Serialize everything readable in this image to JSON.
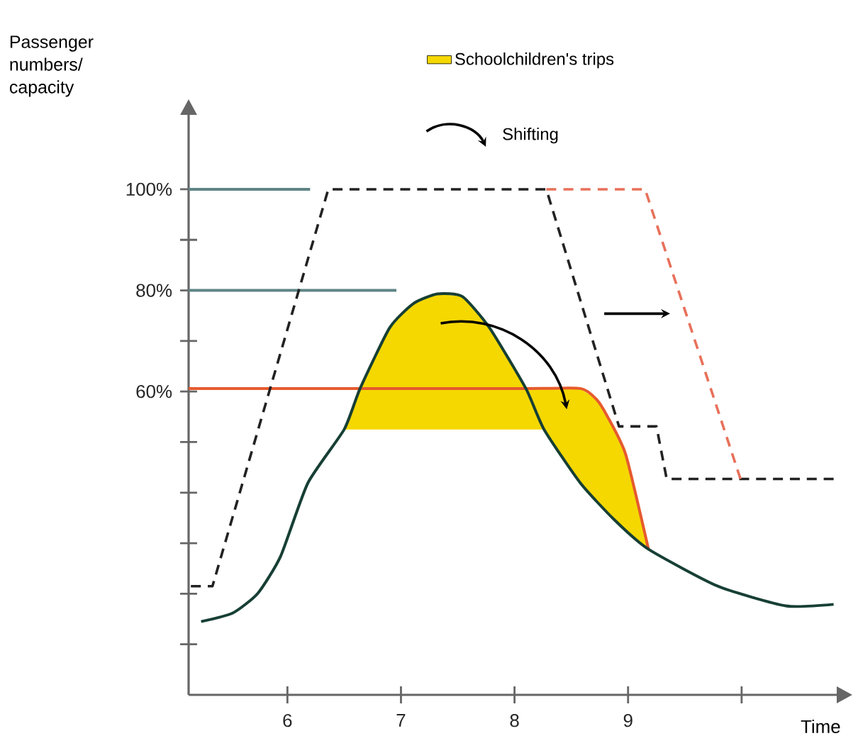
{
  "chart_data": {
    "type": "line",
    "xlabel": "Time",
    "ylabel": "Passenger numbers/ capacity",
    "xlim": [
      5.13,
      10.85
    ],
    "ylim": [
      0,
      115
    ],
    "xticks": [
      6,
      7,
      8,
      9,
      {
        "value": 10,
        "label": null
      }
    ],
    "yticks": [
      {
        "value": 10,
        "label": null
      },
      {
        "value": 20,
        "label": null
      },
      {
        "value": 30,
        "label": null
      },
      {
        "value": 40,
        "label": null
      },
      {
        "value": 50,
        "label": null
      },
      {
        "value": 60,
        "label": "60%"
      },
      {
        "value": 70,
        "label": null
      },
      {
        "value": 80,
        "label": "80%"
      },
      {
        "value": 90,
        "label": null
      },
      {
        "value": 100,
        "label": "100%"
      }
    ],
    "grid": false,
    "legend": "top right",
    "annotations": [
      "Shifting"
    ],
    "series": [
      {
        "type": "area",
        "name": "Schoolchildren's trips",
        "color": "#f5d800",
        "x": [
          6.5,
          6.64,
          6.9,
          7.11,
          7.32,
          7.54,
          7.78,
          8.1,
          8.58,
          8.72,
          8.82,
          8.98,
          9.18,
          8.88,
          8.58,
          8.26,
          6.5
        ],
        "values": [
          52.5,
          60.6,
          72.6,
          77.4,
          79.3,
          78.8,
          72.6,
          60.6,
          60.6,
          58.5,
          55,
          47.5,
          28.8,
          34.6,
          41.9,
          52.5,
          52.5
        ]
      },
      {
        "color": "#5f8585",
        "x": [
          5.13,
          6.2
        ],
        "values": [
          100,
          100
        ]
      },
      {
        "color": "#5f8585",
        "x": [
          5.13,
          6.96
        ],
        "values": [
          80,
          80
        ]
      },
      {
        "color": "#e65a2e",
        "x": [
          5.13,
          8.1,
          8.58,
          8.72,
          8.82,
          8.98,
          9.18
        ],
        "values": [
          60.6,
          60.6,
          60.6,
          58.5,
          55,
          47.5,
          28.8
        ]
      },
      {
        "color": "#173f35",
        "x": [
          5.24,
          5.52,
          5.74,
          5.94,
          6.18,
          6.5,
          6.64,
          6.9,
          7.11,
          7.32,
          7.54,
          7.78,
          8.1,
          8.26,
          8.58,
          8.88,
          9.18,
          9.79,
          10.39,
          10.81
        ],
        "values": [
          14.5,
          16.2,
          20.1,
          27.4,
          41.9,
          52.5,
          60.6,
          72.6,
          77.4,
          79.3,
          78.8,
          72.6,
          60.6,
          52.5,
          41.9,
          34.6,
          28.8,
          21.5,
          17.6,
          17.9
        ]
      },
      {
        "color": "#222222",
        "line_style": "dashed",
        "x": [
          5.15,
          5.34,
          6.36,
          8.28,
          8.92,
          9.25,
          9.34,
          10.81
        ],
        "values": [
          21.5,
          21.5,
          100,
          100,
          53.1,
          53.1,
          42.7,
          42.7
        ]
      },
      {
        "color": "#e8705a",
        "line_style": "dashed",
        "x": [
          8.28,
          9.15,
          9.99
        ],
        "values": [
          100,
          100,
          42.7
        ]
      }
    ]
  }
}
